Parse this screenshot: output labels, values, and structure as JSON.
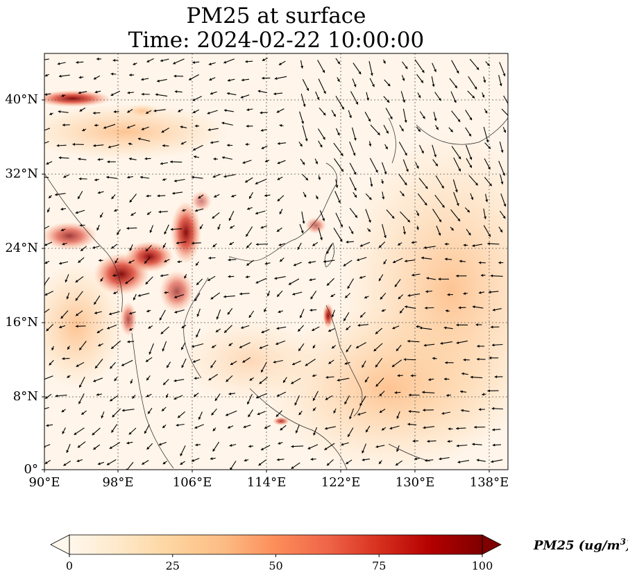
{
  "title": {
    "line1": "PM25 at surface",
    "line2": "Time: 2024-02-22 10:00:00"
  },
  "map": {
    "extent": {
      "lon": [
        90,
        140
      ],
      "lat": [
        0,
        45
      ]
    },
    "y_ticks": [
      "40°N",
      "32°N",
      "24°N",
      "16°N",
      "8°N",
      "0°"
    ],
    "x_ticks": [
      "90°E",
      "98°E",
      "106°E",
      "114°E",
      "122°E",
      "130°E",
      "138°E"
    ],
    "colormap": "OrRd",
    "colormap_colors": [
      "#fff7ec",
      "#fee8c8",
      "#fdd49e",
      "#fdbb84",
      "#fc8d59",
      "#ef6548",
      "#d7301f",
      "#b30000",
      "#7f0000"
    ],
    "overlay": "wind vectors"
  },
  "colorbar": {
    "ticks": [
      "0",
      "25",
      "50",
      "75",
      "100"
    ],
    "range": [
      0,
      100
    ],
    "label_main": "PM25 (ug/m",
    "label_sup": "3",
    "label_end": ")"
  }
}
